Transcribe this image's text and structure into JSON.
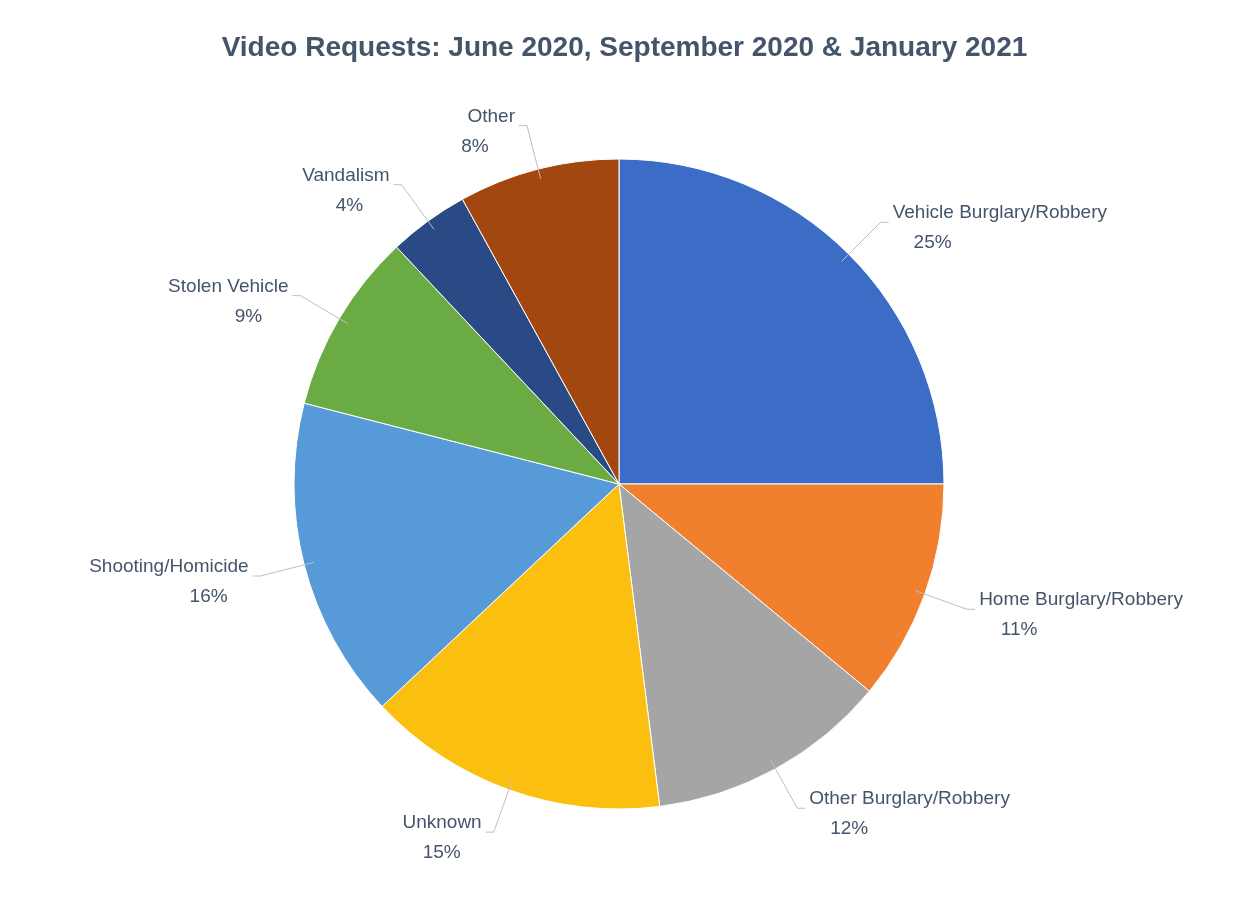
{
  "chart_data": {
    "type": "pie",
    "title": "Video Requests: June 2020, September 2020 & January 2021",
    "categories": [
      "Vehicle Burglary/Robbery",
      "Home Burglary/Robbery",
      "Other Burglary/Robbery",
      "Unknown",
      "Shooting/Homicide",
      "Stolen Vehicle",
      "Vandalism",
      "Other"
    ],
    "values": [
      25,
      11,
      12,
      15,
      16,
      9,
      4,
      8
    ],
    "value_labels": [
      "25%",
      "11%",
      "12%",
      "15%",
      "16%",
      "9%",
      "4%",
      "8%"
    ],
    "colors": [
      "#3b6cc6",
      "#f07f2e",
      "#a5a5a5",
      "#fbbf10",
      "#579ad8",
      "#6aab44",
      "#2a4a86",
      "#a2470f"
    ]
  }
}
